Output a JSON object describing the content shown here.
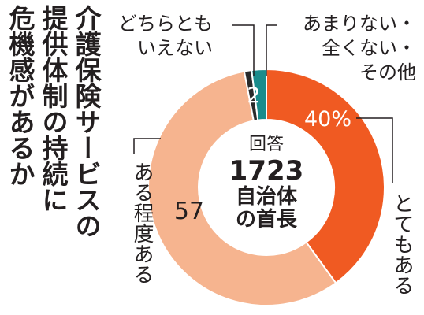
{
  "chart_data": {
    "type": "pie",
    "title_lines": [
      "介護保険サービスの",
      "提供体制の持続に",
      "危機感があるか"
    ],
    "center": {
      "label": "回答",
      "count": "1723",
      "subject_lines": [
        "自治体",
        "の首長"
      ]
    },
    "slices": [
      {
        "name": "とてもある",
        "value": 40,
        "value_label": "40%",
        "color": "#f05a22"
      },
      {
        "name": "ある程度ある",
        "value": 57,
        "value_label": "57",
        "color": "#f6b48f"
      },
      {
        "name": "あまりない・全くない・その他",
        "name_lines": [
          "あまりない・",
          "全くない・",
          "その他"
        ],
        "value": 1,
        "value_label": "",
        "color": "#2a2a2a"
      },
      {
        "name": "どちらともいえない",
        "name_lines": [
          "どちらとも",
          "いえない"
        ],
        "value": 2,
        "value_label": "2",
        "color": "#1a8c8c"
      }
    ]
  }
}
